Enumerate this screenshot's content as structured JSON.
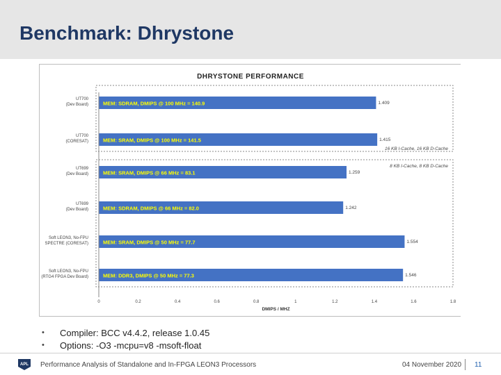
{
  "slide": {
    "title": "Benchmark: Dhrystone",
    "bullets": [
      "Compiler: BCC v4.4.2, release 1.0.45",
      "Options: -O3 -mcpu=v8 -msoft-float"
    ],
    "footer_text": "Performance Analysis of Standalone and In-FPGA LEON3 Processors",
    "footer_date": "04 November 2020",
    "page_number": "11",
    "logo_text": "APL"
  },
  "chart_data": {
    "type": "bar",
    "orientation": "horizontal",
    "title": "Dhrystone Performance",
    "xlabel": "DMIPS / MHz",
    "ylabel": "",
    "xlim": [
      0,
      1.8
    ],
    "xticks": [
      "0",
      "0.2",
      "0.4",
      "0.6",
      "0.8",
      "1",
      "1.2",
      "1.4",
      "1.6",
      "1.8"
    ],
    "categories": [
      [
        "UT700",
        "(Dev Board)"
      ],
      [
        "UT700",
        "(CORESAT)"
      ],
      [
        "UT699",
        "(Dev Board)"
      ],
      [
        "UT699",
        "(Dev Board)"
      ],
      [
        "Soft LEON3, No-FPU",
        "SPECTRE (CORESAT)"
      ],
      [
        "Soft LEON3, No-FPU",
        "(RTG4 FPGA Dev Board)"
      ]
    ],
    "bar_labels": [
      "MEM: SDRAM, DMIPS @ 100 MHz = 140.9",
      "MEM: SRAM, DMIPS @ 100 MHz = 141.5",
      "MEM: SRAM, DMIPS @ 66 MHz = 83.1",
      "MEM: SDRAM, DMIPS @ 66 MHz = 82.0",
      "MEM: SRAM, DMIPS @ 50 MHz = 77.7",
      "MEM: DDR3, DMIPS @ 50 MHz = 77.3"
    ],
    "values": [
      1.409,
      1.415,
      1.259,
      1.242,
      1.554,
      1.546
    ],
    "value_labels": [
      "1.409",
      "1.415",
      "1.259",
      "1.242",
      "1.554",
      "1.546"
    ],
    "group_notes": [
      "16 KB I-Cache, 16 KB D-Cache",
      "8 KB I-Cache, 8 KB D-Cache"
    ],
    "bar_color": "#4472c4",
    "bar_text_color": "#ffff00",
    "grid": false
  }
}
